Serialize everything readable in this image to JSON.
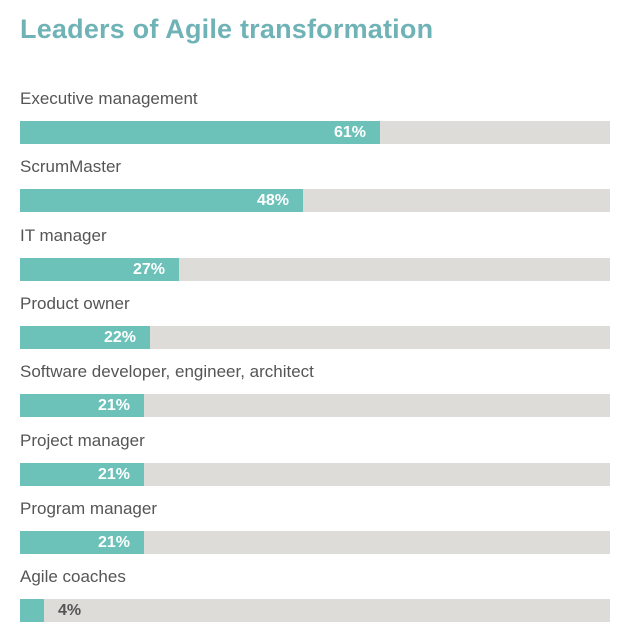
{
  "chart_data": {
    "type": "bar",
    "orientation": "horizontal",
    "title": "Leaders of Agile transformation",
    "categories": [
      "Executive management",
      "ScrumMaster",
      "IT manager",
      "Product owner",
      "Software developer, engineer, architect",
      "Project manager",
      "Program manager",
      "Agile coaches"
    ],
    "values": [
      61,
      48,
      27,
      22,
      21,
      21,
      21,
      4
    ],
    "value_labels": [
      "61%",
      "48%",
      "27%",
      "22%",
      "21%",
      "21%",
      "21%",
      "4%"
    ],
    "xlim": [
      0,
      100
    ],
    "grid": false,
    "colors": {
      "title": "#6fb3b7",
      "bar": "#6cc1b9",
      "track": "#dedcd9",
      "value_inside": "#ffffff",
      "value_outside": "#555555"
    }
  }
}
